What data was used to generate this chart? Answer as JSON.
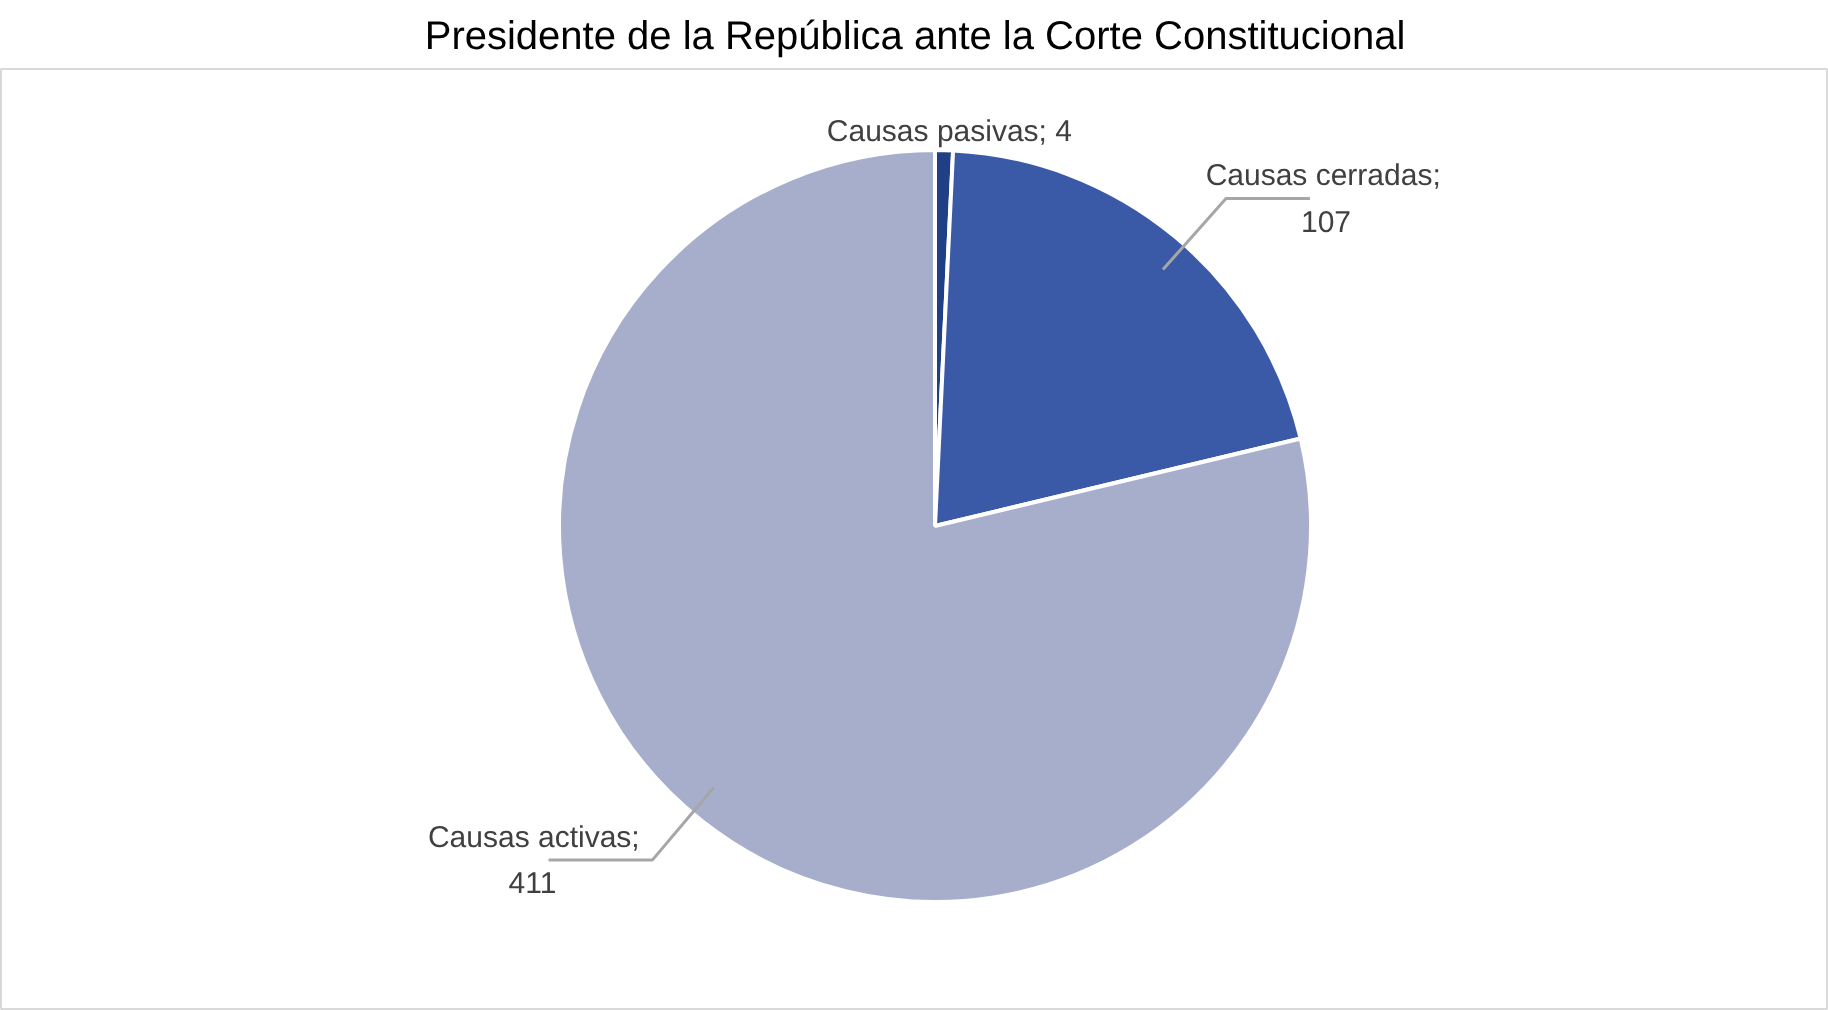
{
  "chart_data": {
    "type": "pie",
    "title": "Presidente de la República ante la Corte Constitucional",
    "categories": [
      "Causas pasivas",
      "Causas cerradas",
      "Causas activas"
    ],
    "values": [
      4,
      107,
      411
    ],
    "colors": [
      "#203f84",
      "#3a5aa8",
      "#a7aecb"
    ],
    "value_labels": [
      "; 4",
      ";\n107",
      ";\n411"
    ]
  }
}
